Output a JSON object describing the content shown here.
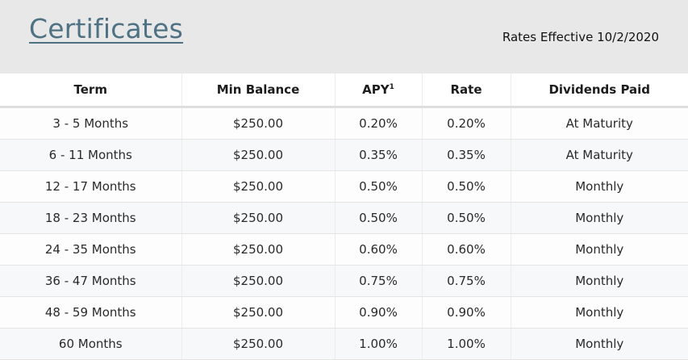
{
  "header": {
    "title": "Certificates",
    "rates_effective": "Rates Effective 10/2/2020"
  },
  "table": {
    "columns": {
      "term": "Term",
      "min_balance": "Min Balance",
      "apy": "APY",
      "apy_footnote": "1",
      "rate": "Rate",
      "dividends_paid": "Dividends Paid"
    },
    "rows": [
      {
        "term": "3 - 5 Months",
        "min_balance": "$250.00",
        "apy": "0.20%",
        "rate": "0.20%",
        "dividends_paid": "At Maturity"
      },
      {
        "term": "6 - 11 Months",
        "min_balance": "$250.00",
        "apy": "0.35%",
        "rate": "0.35%",
        "dividends_paid": "At Maturity"
      },
      {
        "term": "12 - 17 Months",
        "min_balance": "$250.00",
        "apy": "0.50%",
        "rate": "0.50%",
        "dividends_paid": "Monthly"
      },
      {
        "term": "18 - 23 Months",
        "min_balance": "$250.00",
        "apy": "0.50%",
        "rate": "0.50%",
        "dividends_paid": "Monthly"
      },
      {
        "term": "24 - 35 Months",
        "min_balance": "$250.00",
        "apy": "0.60%",
        "rate": "0.60%",
        "dividends_paid": "Monthly"
      },
      {
        "term": "36 - 47 Months",
        "min_balance": "$250.00",
        "apy": "0.75%",
        "rate": "0.75%",
        "dividends_paid": "Monthly"
      },
      {
        "term": "48 - 59 Months",
        "min_balance": "$250.00",
        "apy": "0.90%",
        "rate": "0.90%",
        "dividends_paid": "Monthly"
      },
      {
        "term": "60 Months",
        "min_balance": "$250.00",
        "apy": "1.00%",
        "rate": "1.00%",
        "dividends_paid": "Monthly"
      }
    ]
  },
  "colors": {
    "title": "#4f7184",
    "header_background": "#e8e8e8",
    "row_alt": "#f7f8f9"
  }
}
